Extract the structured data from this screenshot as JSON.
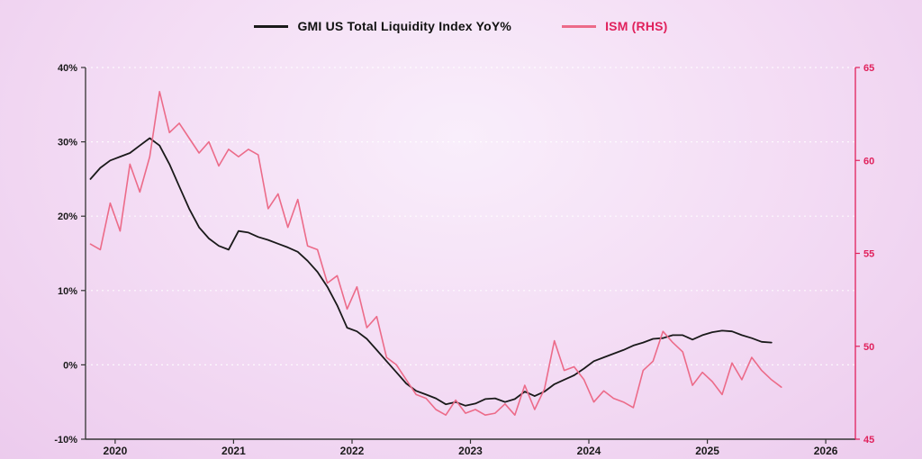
{
  "legend": {
    "series1_label": "GMI US Total Liquidity Index YoY%",
    "series2_label": "ISM (RHS)"
  },
  "colors": {
    "background_center": "#f9eefb",
    "background_edge": "#eccbed",
    "gmi_line": "#1a1a1a",
    "ism_line": "#ec6b89",
    "ism_text": "#e0215c",
    "axis_dark": "#333333",
    "grid": "#ffffff",
    "tick_label_dark": "#1a1a1a"
  },
  "chart_data": {
    "type": "line",
    "title": "",
    "x_start": "2019-10",
    "frequency": "monthly",
    "x_range": [
      2019.75,
      2026.25
    ],
    "x_tick_values": [
      2020,
      2021,
      2022,
      2023,
      2024,
      2025,
      2026
    ],
    "x_tick_labels": [
      "2020",
      "2021",
      "2022",
      "2023",
      "2024",
      "2025",
      "2026"
    ],
    "left_axis": {
      "min": -10,
      "max": 40,
      "tick_values": [
        40,
        30,
        20,
        10,
        0,
        -10
      ],
      "tick_labels": [
        "40%",
        "30%",
        "20%",
        "10%",
        "0%",
        "-10%"
      ]
    },
    "right_axis": {
      "min": 45,
      "max": 65,
      "tick_values": [
        65,
        60,
        55,
        50,
        45
      ],
      "tick_labels": [
        "65",
        "60",
        "55",
        "50",
        "45"
      ]
    },
    "grid": "horizontal-dotted",
    "legend_position": "top-center",
    "series": [
      {
        "name": "GMI US Total Liquidity Index YoY%",
        "axis": "left",
        "color": "#1a1a1a",
        "values": [
          25.0,
          26.5,
          27.5,
          28.0,
          28.5,
          29.5,
          30.5,
          29.5,
          27.0,
          24.0,
          21.0,
          18.5,
          17.0,
          16.0,
          15.5,
          18.0,
          17.8,
          17.2,
          16.8,
          16.3,
          15.8,
          15.2,
          14.0,
          12.5,
          10.5,
          8.0,
          5.0,
          4.5,
          3.5,
          2.0,
          0.5,
          -1.0,
          -2.5,
          -3.5,
          -4.0,
          -4.5,
          -5.3,
          -5.0,
          -5.5,
          -5.2,
          -4.6,
          -4.5,
          -5.0,
          -4.6,
          -3.6,
          -4.2,
          -3.6,
          -2.6,
          -2.0,
          -1.4,
          -0.5,
          0.5,
          1.0,
          1.5,
          2.0,
          2.6,
          3.0,
          3.5,
          3.6,
          4.0,
          4.0,
          3.4,
          4.0,
          4.4,
          4.6,
          4.5,
          4.0,
          3.6,
          3.1,
          3.0
        ]
      },
      {
        "name": "ISM (RHS)",
        "axis": "right",
        "color": "#ec6b89",
        "values": [
          55.5,
          55.2,
          57.7,
          56.2,
          59.8,
          58.3,
          60.2,
          63.7,
          61.5,
          62.0,
          61.2,
          60.4,
          61.0,
          59.7,
          60.6,
          60.2,
          60.6,
          60.3,
          57.4,
          58.2,
          56.4,
          57.9,
          55.4,
          55.2,
          53.4,
          53.8,
          52.0,
          53.2,
          51.0,
          51.6,
          49.4,
          49.0,
          48.2,
          47.4,
          47.2,
          46.6,
          46.3,
          47.1,
          46.4,
          46.6,
          46.3,
          46.4,
          46.9,
          46.3,
          47.9,
          46.6,
          47.7,
          50.3,
          48.7,
          48.9,
          48.2,
          47.0,
          47.6,
          47.2,
          47.0,
          46.7,
          48.7,
          49.2,
          50.8,
          50.2,
          49.7,
          47.9,
          48.6,
          48.1,
          47.4,
          49.1,
          48.2,
          49.4,
          48.7,
          48.2,
          47.8
        ]
      }
    ]
  }
}
